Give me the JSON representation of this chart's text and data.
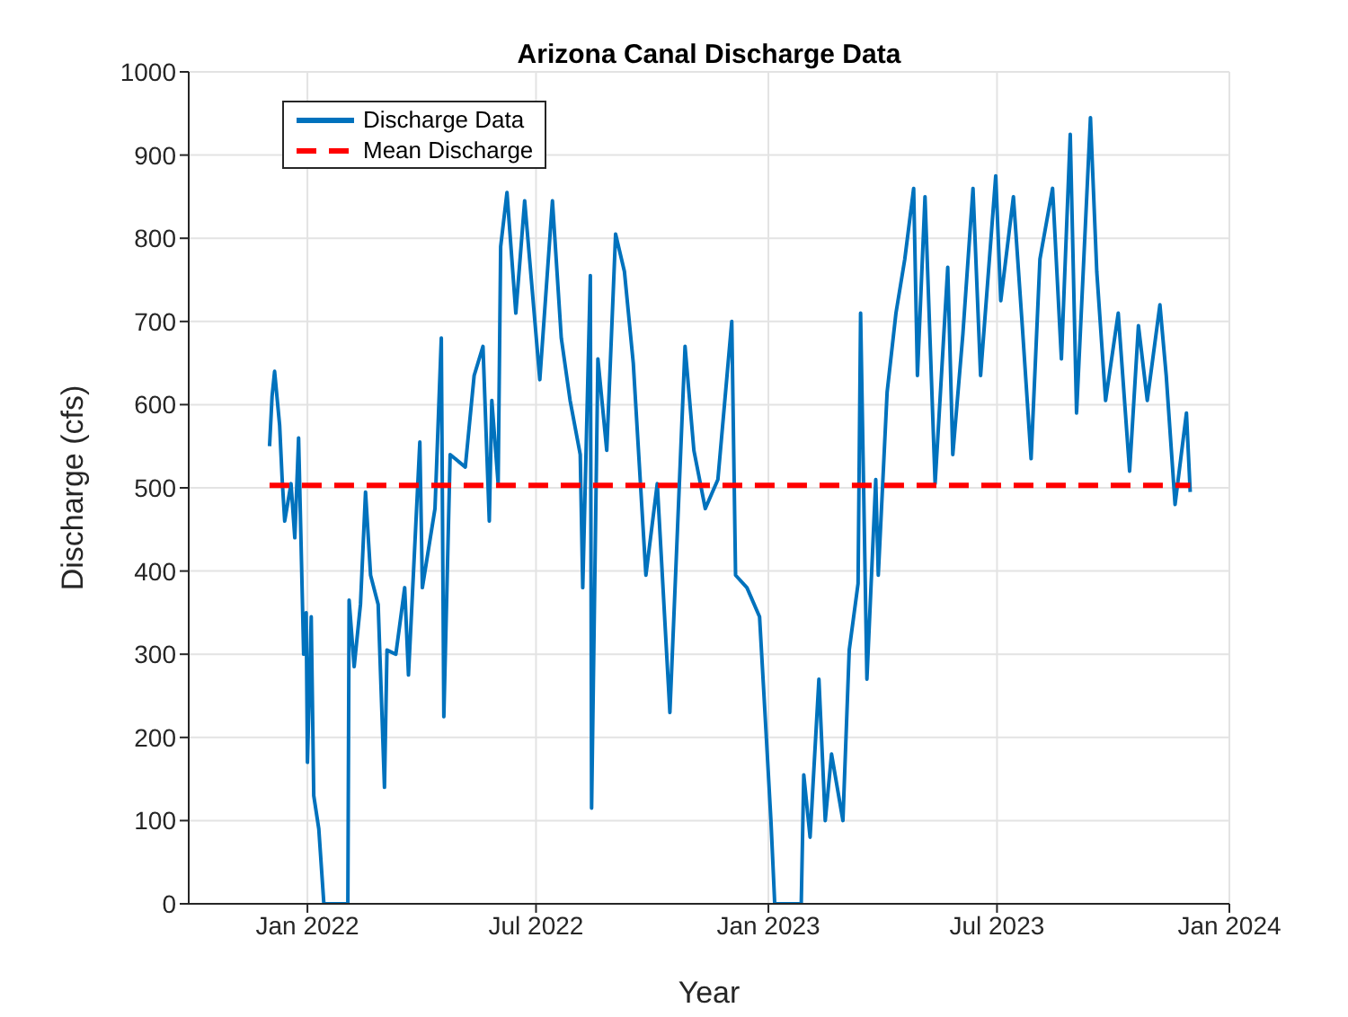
{
  "chart_data": {
    "type": "line",
    "title": "Arizona Canal Discharge Data",
    "xlabel": "Year",
    "ylabel": "Discharge (cfs)",
    "xlim": [
      "2021-09-29",
      "2024-01-01"
    ],
    "xticks": [
      {
        "value": "2022-01-01",
        "label": "Jan 2022"
      },
      {
        "value": "2022-07-01",
        "label": "Jul 2022"
      },
      {
        "value": "2023-01-01",
        "label": "Jan 2023"
      },
      {
        "value": "2023-07-01",
        "label": "Jul 2023"
      },
      {
        "value": "2024-01-01",
        "label": "Jan 2024"
      }
    ],
    "ylim": [
      0,
      1000
    ],
    "yticks": [
      0,
      100,
      200,
      300,
      400,
      500,
      600,
      700,
      800,
      900,
      1000
    ],
    "grid": true,
    "legend": "top left",
    "marker": "none",
    "series": [
      {
        "name": "Discharge Data",
        "color": "#0072bd",
        "line_style": "solid",
        "x": [
          "2021-12-02",
          "2021-12-04",
          "2021-12-06",
          "2021-12-10",
          "2021-12-12",
          "2021-12-14",
          "2021-12-19",
          "2021-12-22",
          "2021-12-25",
          "2021-12-29",
          "2021-12-31",
          "2022-01-01",
          "2022-01-04",
          "2022-01-06",
          "2022-01-10",
          "2022-01-14",
          "2022-02-02",
          "2022-02-03",
          "2022-02-07",
          "2022-02-12",
          "2022-02-16",
          "2022-02-20",
          "2022-02-26",
          "2022-03-03",
          "2022-03-05",
          "2022-03-12",
          "2022-03-19",
          "2022-03-22",
          "2022-03-31",
          "2022-04-02",
          "2022-04-12",
          "2022-04-17",
          "2022-04-19",
          "2022-04-24",
          "2022-05-06",
          "2022-05-13",
          "2022-05-20",
          "2022-05-25",
          "2022-05-27",
          "2022-06-01",
          "2022-06-03",
          "2022-06-08",
          "2022-06-15",
          "2022-06-22",
          "2022-07-04",
          "2022-07-14",
          "2022-07-21",
          "2022-07-28",
          "2022-08-05",
          "2022-08-07",
          "2022-08-13",
          "2022-08-14",
          "2022-08-19",
          "2022-08-26",
          "2022-09-02",
          "2022-09-09",
          "2022-09-16",
          "2022-09-26",
          "2022-10-05",
          "2022-10-15",
          "2022-10-27",
          "2022-11-03",
          "2022-11-12",
          "2022-11-22",
          "2022-12-03",
          "2022-12-06",
          "2022-12-15",
          "2022-12-25",
          "2022-12-30",
          "2023-01-03",
          "2023-01-06",
          "2023-01-27",
          "2023-01-29",
          "2023-02-03",
          "2023-02-10",
          "2023-02-15",
          "2023-02-20",
          "2023-03-01",
          "2023-03-06",
          "2023-03-13",
          "2023-03-15",
          "2023-03-20",
          "2023-03-27",
          "2023-03-29",
          "2023-04-05",
          "2023-04-12",
          "2023-04-19",
          "2023-04-26",
          "2023-04-29",
          "2023-05-05",
          "2023-05-13",
          "2023-05-23",
          "2023-05-27",
          "2023-06-04",
          "2023-06-12",
          "2023-06-18",
          "2023-06-30",
          "2023-07-04",
          "2023-07-14",
          "2023-07-21",
          "2023-07-28",
          "2023-08-04",
          "2023-08-14",
          "2023-08-21",
          "2023-08-28",
          "2023-09-02",
          "2023-09-13",
          "2023-09-18",
          "2023-09-25",
          "2023-10-05",
          "2023-10-14",
          "2023-10-21",
          "2023-10-28",
          "2023-11-07",
          "2023-11-12",
          "2023-11-19",
          "2023-11-28",
          "2023-12-01"
        ],
        "values": [
          550,
          610,
          640,
          575,
          510,
          460,
          505,
          440,
          560,
          300,
          350,
          170,
          345,
          130,
          90,
          0,
          0,
          365,
          285,
          360,
          495,
          395,
          360,
          140,
          305,
          300,
          380,
          275,
          555,
          380,
          475,
          680,
          225,
          540,
          525,
          635,
          670,
          460,
          605,
          505,
          790,
          855,
          710,
          845,
          630,
          845,
          680,
          605,
          540,
          380,
          755,
          115,
          655,
          545,
          805,
          760,
          650,
          395,
          505,
          230,
          670,
          545,
          475,
          510,
          700,
          395,
          380,
          345,
          210,
          100,
          0,
          0,
          155,
          80,
          270,
          100,
          180,
          100,
          305,
          385,
          710,
          270,
          510,
          395,
          615,
          710,
          775,
          860,
          635,
          850,
          505,
          765,
          540,
          685,
          860,
          635,
          875,
          725,
          850,
          695,
          535,
          775,
          860,
          655,
          925,
          590,
          945,
          760,
          605,
          710,
          520,
          695,
          605,
          720,
          635,
          480,
          590,
          495
        ]
      },
      {
        "name": "Mean Discharge",
        "color": "#ff0000",
        "line_style": "dashed",
        "x": [
          "2021-12-02",
          "2023-12-01"
        ],
        "values": [
          503,
          503
        ]
      }
    ]
  }
}
